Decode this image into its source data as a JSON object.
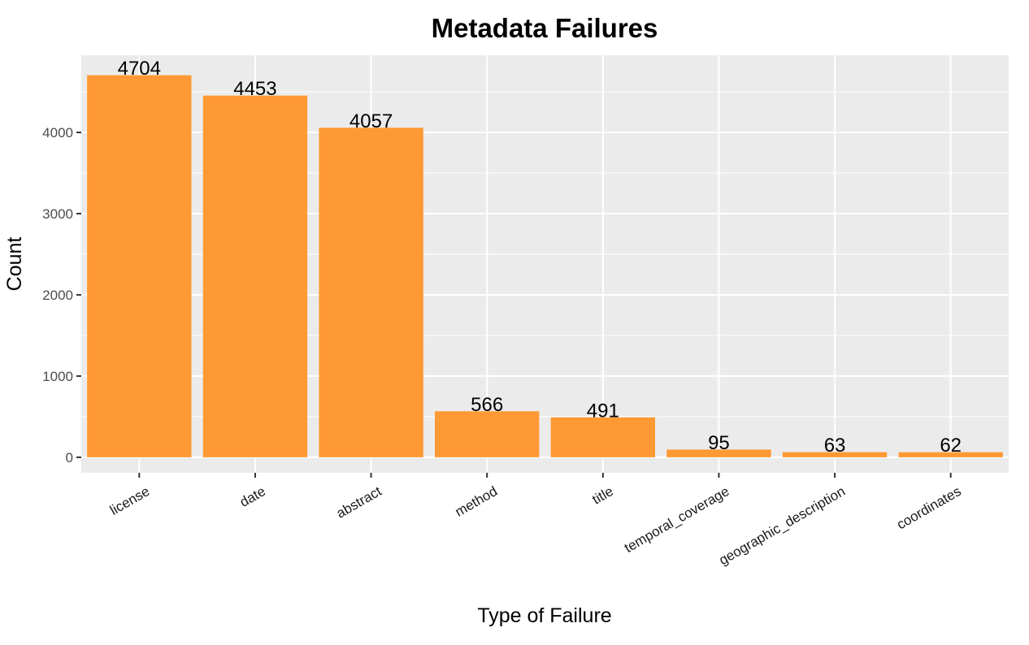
{
  "chart_data": {
    "type": "bar",
    "title": "Metadata Failures",
    "xlabel": "Type of Failure",
    "ylabel": "Count",
    "categories": [
      "license",
      "date",
      "abstract",
      "method",
      "title",
      "temporal_coverage",
      "geographic_description",
      "coordinates"
    ],
    "values": [
      4704,
      4453,
      4057,
      566,
      491,
      95,
      63,
      62
    ],
    "ylim": [
      -191,
      4950
    ],
    "yticks": [
      0,
      1000,
      2000,
      3000,
      4000
    ],
    "grid": true,
    "legend": "none",
    "colors": {
      "bar": "#FF9933",
      "panel": "#EBEBEB",
      "grid": "#FFFFFF"
    }
  }
}
